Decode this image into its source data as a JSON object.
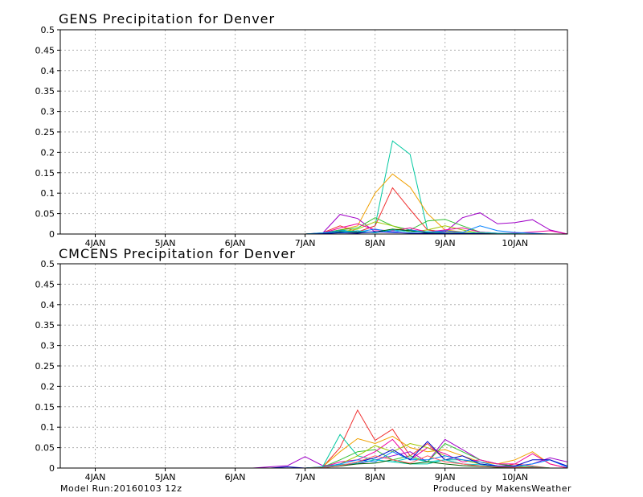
{
  "footer": {
    "left": "Model Run:20160103 12z",
    "right": "Produced by MakensWeather"
  },
  "chart_data": [
    {
      "type": "line",
      "title": "GENS Precipitation for Denver",
      "xlabel": "",
      "ylabel": "",
      "ylim": [
        0,
        0.5
      ],
      "yticks": [
        "0",
        "0.05",
        "0.1",
        "0.15",
        "0.2",
        "0.25",
        "0.3",
        "0.35",
        "0.4",
        "0.45",
        "0.5"
      ],
      "xticks": [
        "4JAN",
        "5JAN",
        "6JAN",
        "7JAN",
        "8JAN",
        "9JAN",
        "10JAN"
      ],
      "xlim": [
        3.5,
        10.75
      ],
      "grid": true,
      "x": [
        3.5,
        3.75,
        4.0,
        4.25,
        4.5,
        4.75,
        5.0,
        5.25,
        5.5,
        5.75,
        6.0,
        6.25,
        6.5,
        6.75,
        7.0,
        7.25,
        7.5,
        7.75,
        8.0,
        8.25,
        8.5,
        8.75,
        9.0,
        9.25,
        9.5,
        9.75,
        10.0,
        10.25,
        10.5,
        10.75
      ],
      "series": [
        {
          "color": "#00c8a0",
          "values": [
            0,
            0,
            0,
            0,
            0,
            0,
            0,
            0,
            0,
            0,
            0,
            0,
            0,
            0,
            0,
            0.002,
            0.01,
            0.005,
            0.02,
            0.228,
            0.195,
            0.01,
            0.005,
            0.003,
            0,
            0,
            0,
            0,
            0,
            0
          ]
        },
        {
          "color": "#f0a000",
          "values": [
            0,
            0,
            0,
            0,
            0,
            0,
            0,
            0,
            0,
            0,
            0,
            0,
            0,
            0,
            0,
            0.002,
            0.01,
            0.02,
            0.1,
            0.147,
            0.115,
            0.05,
            0.01,
            0.005,
            0.002,
            0,
            0,
            0,
            0,
            0
          ]
        },
        {
          "color": "#f03030",
          "values": [
            0,
            0,
            0,
            0,
            0,
            0,
            0,
            0,
            0,
            0,
            0,
            0,
            0,
            0,
            0,
            0.003,
            0.02,
            0.005,
            0.02,
            0.113,
            0.06,
            0.01,
            0.005,
            0.003,
            0,
            0,
            0,
            0,
            0,
            0
          ]
        },
        {
          "color": "#a000c8",
          "values": [
            0,
            0,
            0,
            0,
            0,
            0,
            0,
            0,
            0,
            0,
            0,
            0,
            0,
            0,
            0,
            0.002,
            0.048,
            0.038,
            0.005,
            0.005,
            0.01,
            0.005,
            0.005,
            0.04,
            0.052,
            0.025,
            0.028,
            0.035,
            0.01,
            0
          ]
        },
        {
          "color": "#30c030",
          "values": [
            0,
            0,
            0,
            0,
            0,
            0,
            0,
            0,
            0,
            0,
            0,
            0,
            0,
            0,
            0,
            0.002,
            0.01,
            0.015,
            0.04,
            0.02,
            0.01,
            0.032,
            0.036,
            0.02,
            0.005,
            0.002,
            0,
            0,
            0,
            0
          ]
        },
        {
          "color": "#a0c800",
          "values": [
            0,
            0,
            0,
            0,
            0,
            0,
            0,
            0,
            0,
            0,
            0,
            0,
            0,
            0,
            0,
            0.002,
            0.005,
            0.012,
            0.03,
            0.02,
            0.005,
            0.01,
            0.02,
            0.01,
            0.002,
            0,
            0,
            0,
            0,
            0
          ]
        },
        {
          "color": "#f000a0",
          "values": [
            0,
            0,
            0,
            0,
            0,
            0,
            0,
            0,
            0,
            0,
            0,
            0,
            0,
            0,
            0,
            0.002,
            0.015,
            0.025,
            0.01,
            0.008,
            0.015,
            0.005,
            0.01,
            0.015,
            0.005,
            0.002,
            0.002,
            0.005,
            0.008,
            0
          ]
        },
        {
          "color": "#0080ff",
          "values": [
            0,
            0,
            0,
            0,
            0,
            0,
            0,
            0,
            0,
            0,
            0,
            0,
            0,
            0,
            0,
            0.003,
            0.008,
            0.005,
            0.012,
            0.005,
            0.01,
            0.004,
            0.008,
            0.004,
            0.02,
            0.008,
            0.004,
            0.002,
            0,
            0
          ]
        },
        {
          "color": "#006000",
          "values": [
            0,
            0,
            0,
            0,
            0,
            0,
            0,
            0,
            0,
            0,
            0,
            0,
            0,
            0,
            0,
            0.001,
            0.006,
            0.004,
            0.005,
            0.012,
            0.008,
            0.003,
            0.002,
            0.002,
            0.001,
            0,
            0,
            0,
            0,
            0
          ]
        },
        {
          "color": "#00c8c8",
          "values": [
            0,
            0,
            0,
            0,
            0,
            0,
            0,
            0,
            0,
            0,
            0,
            0,
            0,
            0,
            0,
            0.002,
            0.004,
            0.008,
            0.003,
            0.01,
            0.005,
            0.006,
            0.003,
            0.002,
            0.004,
            0.002,
            0.001,
            0,
            0,
            0
          ]
        },
        {
          "color": "#0000c8",
          "values": [
            0,
            0,
            0,
            0,
            0,
            0,
            0,
            0,
            0,
            0,
            0,
            0,
            0,
            0,
            0,
            0.001,
            0.003,
            0.002,
            0.006,
            0.004,
            0.002,
            0.002,
            0.001,
            0.001,
            0.001,
            0,
            0,
            0,
            0,
            0
          ]
        }
      ]
    },
    {
      "type": "line",
      "title": "CMCENS Precipitation for Denver",
      "xlabel": "",
      "ylabel": "",
      "ylim": [
        0,
        0.5
      ],
      "yticks": [
        "0",
        "0.05",
        "0.1",
        "0.15",
        "0.2",
        "0.25",
        "0.3",
        "0.35",
        "0.4",
        "0.45",
        "0.5"
      ],
      "xticks": [
        "4JAN",
        "5JAN",
        "6JAN",
        "7JAN",
        "8JAN",
        "9JAN",
        "10JAN"
      ],
      "xlim": [
        3.5,
        10.75
      ],
      "grid": true,
      "x": [
        3.5,
        3.75,
        4.0,
        4.25,
        4.5,
        4.75,
        5.0,
        5.25,
        5.5,
        5.75,
        6.0,
        6.25,
        6.5,
        6.75,
        7.0,
        7.25,
        7.5,
        7.75,
        8.0,
        8.25,
        8.5,
        8.75,
        9.0,
        9.25,
        9.5,
        9.75,
        10.0,
        10.25,
        10.5,
        10.75
      ],
      "series": [
        {
          "color": "#f03030",
          "values": [
            0,
            0,
            0,
            0,
            0,
            0,
            0,
            0,
            0,
            0,
            0,
            0,
            0,
            0,
            0,
            0.002,
            0.05,
            0.142,
            0.068,
            0.095,
            0.03,
            0.06,
            0.02,
            0.01,
            0.005,
            0.002,
            0.01,
            0.005,
            0,
            0
          ]
        },
        {
          "color": "#f0a000",
          "values": [
            0,
            0,
            0,
            0,
            0,
            0,
            0,
            0,
            0,
            0,
            0,
            0,
            0,
            0,
            0,
            0.003,
            0.04,
            0.072,
            0.06,
            0.078,
            0.05,
            0.04,
            0.045,
            0.03,
            0.015,
            0.01,
            0.02,
            0.04,
            0.01,
            0
          ]
        },
        {
          "color": "#a000c8",
          "values": [
            0,
            0,
            0,
            0,
            0,
            0,
            0,
            0,
            0,
            0,
            0,
            0,
            0.003,
            0.006,
            0.028,
            0.006,
            0.008,
            0.01,
            0.02,
            0.03,
            0.04,
            0.015,
            0.07,
            0.045,
            0.02,
            0.01,
            0.005,
            0.01,
            0.025,
            0.015
          ]
        },
        {
          "color": "#00c8a0",
          "values": [
            0,
            0,
            0,
            0,
            0,
            0,
            0,
            0,
            0,
            0,
            0,
            0,
            0,
            0,
            0,
            0.003,
            0.082,
            0.03,
            0.02,
            0.015,
            0.01,
            0.01,
            0.02,
            0.02,
            0.01,
            0.005,
            0.005,
            0.003,
            0,
            0
          ]
        },
        {
          "color": "#30c030",
          "values": [
            0,
            0,
            0,
            0,
            0,
            0,
            0,
            0,
            0,
            0,
            0,
            0,
            0,
            0,
            0,
            0.002,
            0.02,
            0.04,
            0.045,
            0.02,
            0.03,
            0.015,
            0.06,
            0.04,
            0.02,
            0.01,
            0.005,
            0.002,
            0,
            0
          ]
        },
        {
          "color": "#f000a0",
          "values": [
            0,
            0,
            0,
            0,
            0,
            0,
            0,
            0,
            0,
            0,
            0,
            0,
            0,
            0,
            0,
            0.002,
            0.015,
            0.02,
            0.04,
            0.07,
            0.02,
            0.05,
            0.035,
            0.015,
            0.02,
            0.01,
            0.01,
            0.035,
            0.01,
            0
          ]
        },
        {
          "color": "#a0c800",
          "values": [
            0,
            0,
            0,
            0,
            0,
            0,
            0,
            0,
            0,
            0,
            0,
            0,
            0,
            0,
            0,
            0.002,
            0.01,
            0.03,
            0.055,
            0.04,
            0.06,
            0.05,
            0.03,
            0.02,
            0.01,
            0.005,
            0.003,
            0.002,
            0,
            0
          ]
        },
        {
          "color": "#0080ff",
          "values": [
            0,
            0,
            0,
            0,
            0,
            0,
            0,
            0,
            0,
            0,
            0,
            0,
            0,
            0,
            0,
            0.002,
            0.01,
            0.02,
            0.015,
            0.04,
            0.02,
            0.02,
            0.03,
            0.02,
            0.015,
            0.005,
            0.004,
            0.01,
            0.02,
            0.002
          ]
        },
        {
          "color": "#0000c8",
          "values": [
            0,
            0,
            0,
            0,
            0,
            0,
            0,
            0,
            0,
            0,
            0,
            0,
            0,
            0.003,
            0,
            0.002,
            0.005,
            0.015,
            0.025,
            0.045,
            0.02,
            0.065,
            0.02,
            0.03,
            0.01,
            0.005,
            0.005,
            0.02,
            0.02,
            0.005
          ]
        },
        {
          "color": "#00c8c8",
          "values": [
            0,
            0,
            0,
            0,
            0,
            0,
            0,
            0,
            0,
            0,
            0,
            0,
            0,
            0,
            0,
            0.002,
            0.008,
            0.012,
            0.02,
            0.015,
            0.025,
            0.015,
            0.02,
            0.01,
            0.008,
            0.003,
            0.002,
            0.002,
            0,
            0
          ]
        },
        {
          "color": "#006000",
          "values": [
            0,
            0,
            0,
            0,
            0,
            0,
            0,
            0,
            0,
            0,
            0,
            0,
            0,
            0,
            0,
            0.001,
            0.005,
            0.01,
            0.012,
            0.02,
            0.01,
            0.015,
            0.01,
            0.006,
            0.004,
            0.002,
            0.001,
            0,
            0,
            0
          ]
        },
        {
          "color": "#ff6060",
          "values": [
            0,
            0,
            0,
            0,
            0,
            0,
            0,
            0,
            0,
            0,
            0,
            0,
            0,
            0,
            0,
            0.001,
            0.006,
            0.015,
            0.03,
            0.02,
            0.012,
            0.03,
            0.015,
            0.01,
            0.005,
            0.003,
            0.002,
            0.001,
            0,
            0
          ]
        }
      ]
    }
  ]
}
